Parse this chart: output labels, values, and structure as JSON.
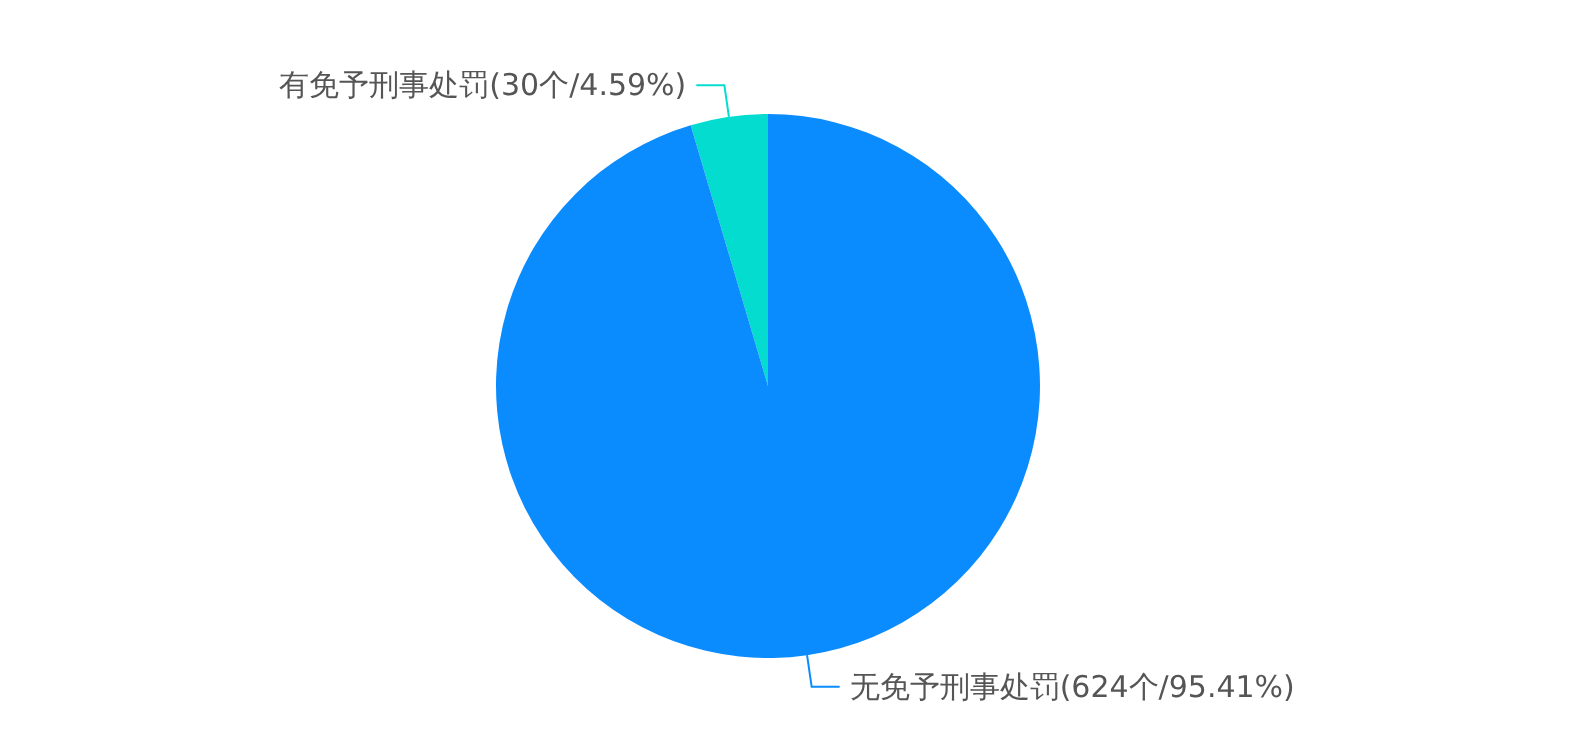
{
  "chart_data": {
    "type": "pie",
    "categories": [
      "有免予刑事处罚",
      "无免予刑事处罚"
    ],
    "values": [
      30,
      624
    ],
    "colors": [
      "#05dcd0",
      "#0a8cff"
    ],
    "value_labels": [
      "(30个/4.59%)",
      "(624个/95.41%)"
    ],
    "legend": false
  }
}
